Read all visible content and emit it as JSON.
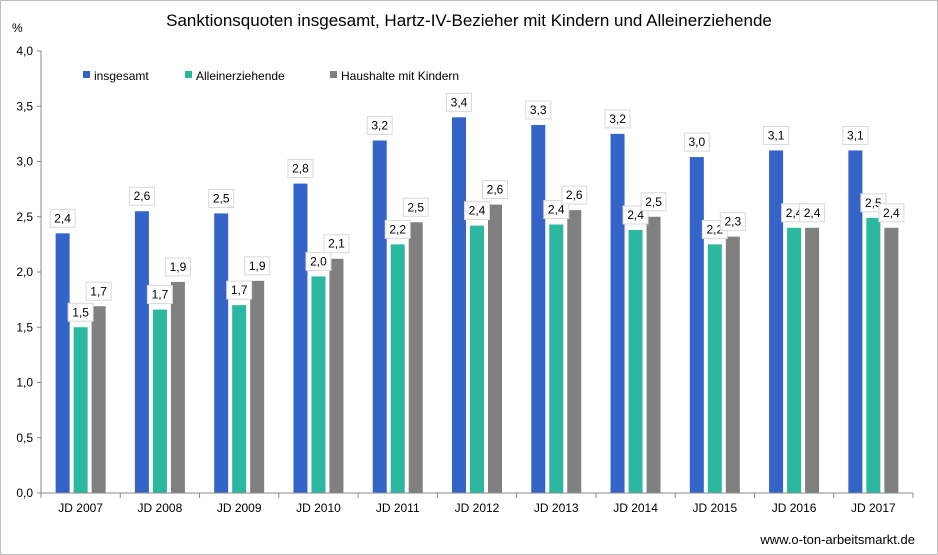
{
  "chart_data": {
    "type": "bar",
    "title": "Sanktionsquoten insgesamt, Hartz-IV-Bezieher mit Kindern und Alleinerziehende",
    "ylabel": "%",
    "xlabel": "",
    "ylim": [
      0,
      4
    ],
    "yticks": [
      "0,0",
      "0,5",
      "1,0",
      "1,5",
      "2,0",
      "2,5",
      "3,0",
      "3,5",
      "4,0"
    ],
    "grid": false,
    "legend_position": "top-left",
    "categories": [
      "JD 2007",
      "JD 2008",
      "JD 2009",
      "JD 2010",
      "JD 2011",
      "JD 2012",
      "JD 2013",
      "JD 2014",
      "JD 2015",
      "JD 2016",
      "JD 2017"
    ],
    "series": [
      {
        "name": "insgesamt",
        "color": "#3464c8",
        "values": [
          2.35,
          2.55,
          2.53,
          2.8,
          3.19,
          3.4,
          3.33,
          3.25,
          3.04,
          3.1,
          3.1
        ],
        "labels": [
          "2,4",
          "2,6",
          "2,5",
          "2,8",
          "3,2",
          "3,4",
          "3,3",
          "3,2",
          "3,0",
          "3,1",
          "3,1"
        ]
      },
      {
        "name": "Alleinerziehende",
        "color": "#2bb7a0",
        "values": [
          1.5,
          1.66,
          1.7,
          1.96,
          2.25,
          2.42,
          2.43,
          2.38,
          2.25,
          2.4,
          2.49
        ],
        "labels": [
          "1,5",
          "1,7",
          "1,7",
          "2,0",
          "2,2",
          "2,4",
          "2,4",
          "2,4",
          "2,2",
          "2,4",
          "2,5"
        ]
      },
      {
        "name": "Haushalte mit Kindern",
        "color": "#808080",
        "values": [
          1.69,
          1.91,
          1.92,
          2.12,
          2.45,
          2.61,
          2.56,
          2.5,
          2.32,
          2.4,
          2.4
        ],
        "labels": [
          "1,7",
          "1,9",
          "1,9",
          "2,1",
          "2,5",
          "2,6",
          "2,6",
          "2,5",
          "2,3",
          "2,4",
          "2,4"
        ]
      }
    ],
    "source": "www.o-ton-arbeitsmarkt.de"
  }
}
